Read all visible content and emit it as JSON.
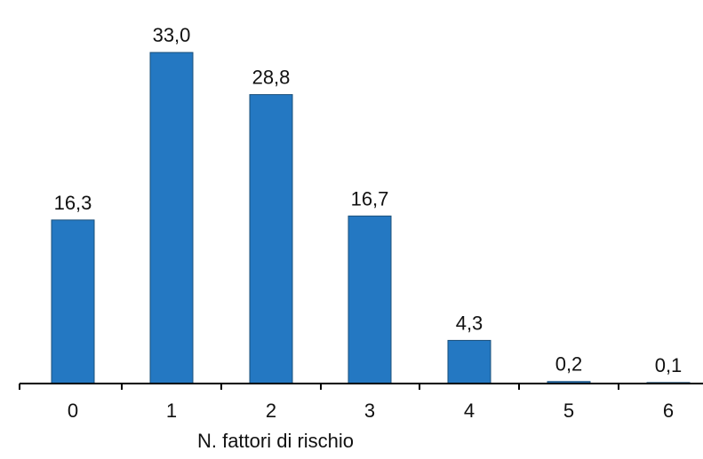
{
  "chart_data": {
    "type": "bar",
    "categories": [
      "0",
      "1",
      "2",
      "3",
      "4",
      "5",
      "6"
    ],
    "values": [
      16.3,
      33.0,
      28.8,
      16.7,
      4.3,
      0.2,
      0.1
    ],
    "value_labels": [
      "16,3",
      "33,0",
      "28,8",
      "16,7",
      "4,3",
      "0,2",
      "0,1"
    ],
    "title": "",
    "xlabel": "N. fattori di rischio",
    "ylabel": "",
    "ylim": [
      0,
      34
    ],
    "grid": false,
    "legend": "none",
    "bar_color": "#2478c2"
  }
}
